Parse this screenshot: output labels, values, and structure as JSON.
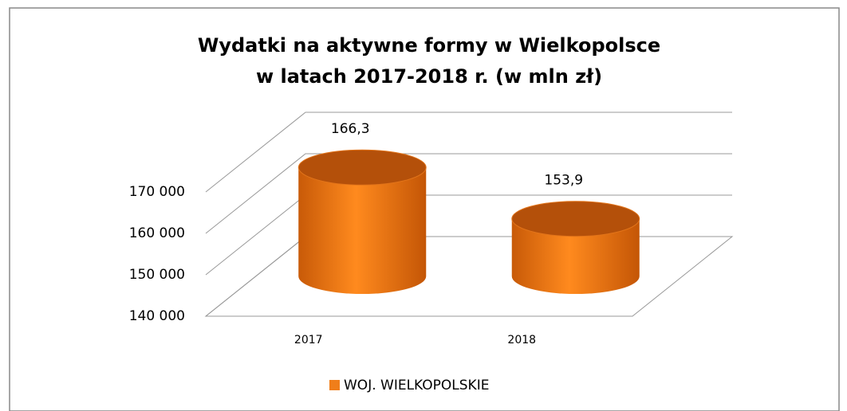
{
  "chart_data": {
    "type": "cylinder3d",
    "title": [
      "Wydatki na aktywne formy w Wielkopolsce",
      "w latach 2017-2018 r. (w mln zł)"
    ],
    "categories": [
      "2017",
      "2018"
    ],
    "series": [
      {
        "name": "WOJ. WIELKOPOLSKIE",
        "color": "#f07e1a",
        "values": [
          166300,
          153900
        ],
        "value_labels": [
          "166,3",
          "153,9"
        ]
      }
    ],
    "ylim": [
      140000,
      170000
    ],
    "yticks": [
      {
        "value": 140000,
        "label": "140 000"
      },
      {
        "value": 150000,
        "label": "150 000"
      },
      {
        "value": 160000,
        "label": "160 000"
      },
      {
        "value": 170000,
        "label": "170 000"
      }
    ],
    "grid": true,
    "legend": "bottom"
  }
}
